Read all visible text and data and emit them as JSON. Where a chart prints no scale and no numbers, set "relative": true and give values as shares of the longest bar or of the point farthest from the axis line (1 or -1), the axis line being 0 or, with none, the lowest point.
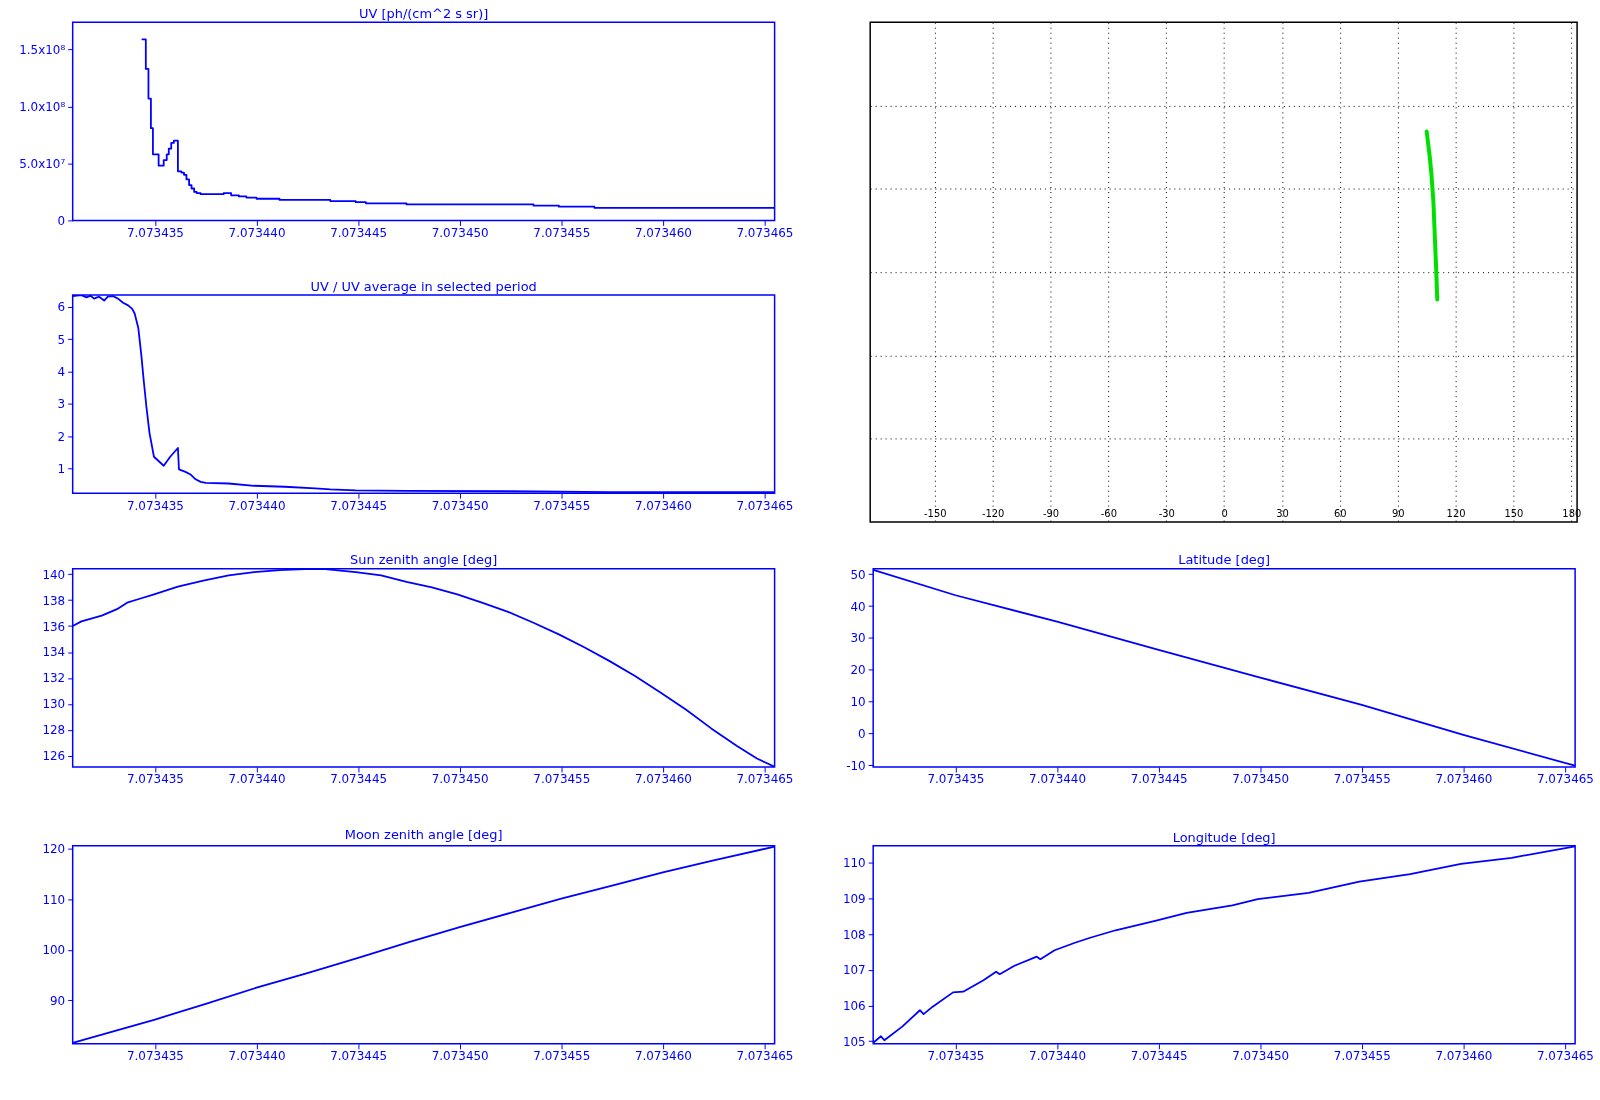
{
  "chart_data": [
    {
      "type": "step",
      "title": "UV [ph/(cm^2 s sr)]",
      "color": "#0000ff",
      "x": [
        7.07343438,
        7.07343455,
        7.07343468,
        7.0734348,
        7.0734349,
        7.07343518,
        7.07343543,
        7.07343558,
        7.07343568,
        7.0734358,
        7.07343593,
        7.07343613,
        7.0734363,
        7.07343643,
        7.07343655,
        7.07343668,
        7.0734368,
        7.07343693,
        7.07343705,
        7.07343725,
        7.07343763,
        7.07343838,
        7.07343875,
        7.07343913,
        7.0734395,
        7.07344,
        7.07344113,
        7.07344175,
        7.07344238,
        7.07344363,
        7.07344488,
        7.07344538,
        7.07344738,
        7.07345063,
        7.07345363,
        7.07345488,
        7.07345663,
        7.07345988,
        7.0734655
      ],
      "values": [
        159000000,
        133000000,
        107000000,
        81000000,
        58000000,
        48000000,
        53000000,
        58000000,
        63000000,
        68000000,
        70000000,
        43000000,
        42000000,
        40000000,
        36000000,
        31000000,
        28000000,
        25000000,
        24000000,
        23000000,
        23000000,
        24000000,
        22000000,
        21000000,
        20000000,
        19000000,
        18000000,
        18000000,
        18000000,
        17000000,
        16000000,
        15000000,
        14000000,
        14000000,
        13000000,
        12000000,
        11000000,
        11000000,
        11000000
      ],
      "xlim": [
        7.07343095,
        7.0734655
      ],
      "xticks": [
        7.073435,
        {
          "value": 7.07344,
          "label": "7.073440"
        },
        7.073445,
        {
          "value": 7.07345,
          "label": "7.073450"
        },
        7.073455,
        {
          "value": 7.07346,
          "label": "7.073460"
        },
        7.073465
      ],
      "ylim": [
        0,
        174000000
      ],
      "yticks": [
        0,
        {
          "value": 50000000,
          "label": "5.0x10⁷"
        },
        {
          "value": 100000000,
          "label": "1.0x10⁸"
        },
        {
          "value": 150000000,
          "label": "1.5x10⁸"
        }
      ]
    },
    {
      "type": "line",
      "color": "#00e000",
      "relative": true,
      "x": [
        105,
        106.5,
        107.5,
        108.5,
        109,
        109.5,
        110,
        110.5
      ],
      "values": [
        1,
        0.94,
        0.89,
        0.82,
        0.76,
        0.7,
        0.64,
        0.57
      ],
      "xlim": [
        -183.5,
        183
      ],
      "xticks": [
        -150,
        -120,
        -90,
        -60,
        -30,
        0,
        30,
        60,
        90,
        120,
        150,
        180
      ],
      "grid": true,
      "tick_labels": "x"
    },
    {
      "type": "line",
      "title": "UV / UV average in selected period",
      "color": "#0000ff",
      "x": [
        7.07343095,
        7.07343138,
        7.07343163,
        7.07343183,
        7.073432,
        7.07343225,
        7.0734325,
        7.07343268,
        7.07343293,
        7.07343318,
        7.07343343,
        7.07343368,
        7.07343388,
        7.073434,
        7.07343418,
        7.07343433,
        7.07343445,
        7.07343458,
        7.07343473,
        7.07343495,
        7.07343543,
        7.07343575,
        7.07343613,
        7.07343618,
        7.0734365,
        7.07343675,
        7.073437,
        7.07343725,
        7.0734375,
        7.07343863,
        7.07343988,
        7.07344138,
        7.07344288,
        7.07344363,
        7.07344488,
        7.07344738,
        7.07345238,
        7.07345738,
        7.0734655
      ],
      "values": [
        6.34,
        6.37,
        6.3,
        6.35,
        6.26,
        6.32,
        6.2,
        6.32,
        6.34,
        6.26,
        6.13,
        6.05,
        5.94,
        5.8,
        5.35,
        4.5,
        3.7,
        2.9,
        2.1,
        1.36,
        1.08,
        1.36,
        1.63,
        0.97,
        0.89,
        0.81,
        0.66,
        0.58,
        0.55,
        0.53,
        0.46,
        0.43,
        0.38,
        0.35,
        0.32,
        0.3,
        0.29,
        0.26,
        0.26
      ],
      "xlim": [
        7.07343095,
        7.0734655
      ],
      "xticks": [
        7.073435,
        {
          "value": 7.07344,
          "label": "7.073440"
        },
        7.073445,
        {
          "value": 7.07345,
          "label": "7.073450"
        },
        7.073455,
        {
          "value": 7.07346,
          "label": "7.073460"
        },
        7.073465
      ],
      "ylim": [
        0.23,
        6.37
      ],
      "yticks": [
        1,
        2,
        3,
        4,
        5,
        6
      ]
    },
    {
      "type": "line",
      "title": "Sun zenith angle [deg]",
      "color": "#0000ff",
      "x": [
        7.07343095,
        7.07343138,
        7.07343238,
        7.07343313,
        7.07343363,
        7.07343425,
        7.07343488,
        7.07343613,
        7.07343738,
        7.07343863,
        7.07343988,
        7.07344113,
        7.07344238,
        7.07344338,
        7.07344488,
        7.07344613,
        7.07344738,
        7.07344863,
        7.07344988,
        7.07345113,
        7.07345238,
        7.07345363,
        7.07345488,
        7.07345613,
        7.07345738,
        7.07345863,
        7.07345988,
        7.07346113,
        7.07346238,
        7.07346363,
        7.07346463,
        7.0734655
      ],
      "values": [
        136.0,
        136.36,
        136.8,
        137.3,
        137.8,
        138.1,
        138.4,
        139.04,
        139.5,
        139.9,
        140.15,
        140.3,
        140.38,
        140.38,
        140.15,
        139.9,
        139.4,
        138.97,
        138.43,
        137.78,
        137.09,
        136.25,
        135.36,
        134.37,
        133.3,
        132.15,
        130.88,
        129.58,
        128.12,
        126.78,
        125.8,
        125.17
      ],
      "xlim": [
        7.07343095,
        7.0734655
      ],
      "xticks": [
        7.073435,
        {
          "value": 7.07344,
          "label": "7.073440"
        },
        7.073445,
        {
          "value": 7.07345,
          "label": "7.073450"
        },
        7.073455,
        {
          "value": 7.07346,
          "label": "7.073460"
        },
        7.073465
      ],
      "ylim": [
        125.15,
        140.4
      ],
      "yticks": [
        126,
        128,
        130,
        132,
        134,
        136,
        138,
        140
      ]
    },
    {
      "type": "line",
      "title": "Latitude [deg]",
      "color": "#0000ff",
      "x": [
        7.07343095,
        7.073435,
        7.07344,
        7.073445,
        7.07345,
        7.073455,
        7.07346,
        7.0734655
      ],
      "values": [
        51.4,
        43.4,
        35.1,
        26.2,
        17.5,
        8.9,
        -0.5,
        -10.2
      ],
      "xlim": [
        7.07343095,
        7.0734655
      ],
      "xticks": [
        7.073435,
        {
          "value": 7.07344,
          "label": "7.073440"
        },
        7.073445,
        {
          "value": 7.07345,
          "label": "7.073450"
        },
        7.073455,
        {
          "value": 7.07346,
          "label": "7.073460"
        },
        7.073465
      ],
      "ylim": [
        -10.6,
        51.7
      ],
      "yticks": [
        -10,
        0,
        10,
        20,
        30,
        40,
        50
      ]
    },
    {
      "type": "line",
      "title": "Moon zenith angle [deg]",
      "color": "#0000ff",
      "x": [
        7.07343095,
        7.073435,
        7.0734375,
        7.07344,
        7.0734425,
        7.073445,
        7.0734475,
        7.07345,
        7.0734525,
        7.073455,
        7.0734575,
        7.07346,
        7.0734625,
        7.0734655
      ],
      "values": [
        81.6,
        86.2,
        89.3,
        92.5,
        95.4,
        98.4,
        101.5,
        104.5,
        107.3,
        110.1,
        112.7,
        115.3,
        117.7,
        120.4
      ],
      "xlim": [
        7.07343095,
        7.0734655
      ],
      "xticks": [
        7.073435,
        {
          "value": 7.07344,
          "label": "7.073440"
        },
        7.073445,
        {
          "value": 7.07345,
          "label": "7.073450"
        },
        7.073455,
        {
          "value": 7.07346,
          "label": "7.073460"
        },
        7.073465
      ],
      "ylim": [
        81.4,
        120.6
      ],
      "yticks": [
        90,
        100,
        110,
        120
      ]
    },
    {
      "type": "line",
      "title": "Longitude [deg]",
      "color": "#0000ff",
      "x": [
        7.07343095,
        7.07343133,
        7.0734315,
        7.07343238,
        7.07343325,
        7.07343343,
        7.07343388,
        7.07343488,
        7.07343538,
        7.07343638,
        7.073437,
        7.07343718,
        7.07343788,
        7.073439,
        7.07343918,
        7.07343988,
        7.07344088,
        7.07344163,
        7.07344288,
        7.07344488,
        7.07344638,
        7.07344863,
        7.07344988,
        7.07345238,
        7.07345488,
        7.07345738,
        7.07345988,
        7.07346238,
        7.0734655
      ],
      "values": [
        104.96,
        105.14,
        105.03,
        105.41,
        105.87,
        105.76,
        105.97,
        106.37,
        106.39,
        106.71,
        106.95,
        106.88,
        107.11,
        107.37,
        107.3,
        107.55,
        107.76,
        107.9,
        108.11,
        108.38,
        108.6,
        108.81,
        108.98,
        109.16,
        109.47,
        109.68,
        109.97,
        110.14,
        110.46
      ],
      "xlim": [
        7.07343095,
        7.0734655
      ],
      "xticks": [
        7.073435,
        {
          "value": 7.07344,
          "label": "7.073440"
        },
        7.073445,
        {
          "value": 7.07345,
          "label": "7.073450"
        },
        7.073455,
        {
          "value": 7.07346,
          "label": "7.073460"
        },
        7.073465
      ],
      "ylim": [
        104.93,
        110.48
      ],
      "yticks": [
        105,
        106,
        107,
        108,
        109,
        110
      ]
    }
  ]
}
